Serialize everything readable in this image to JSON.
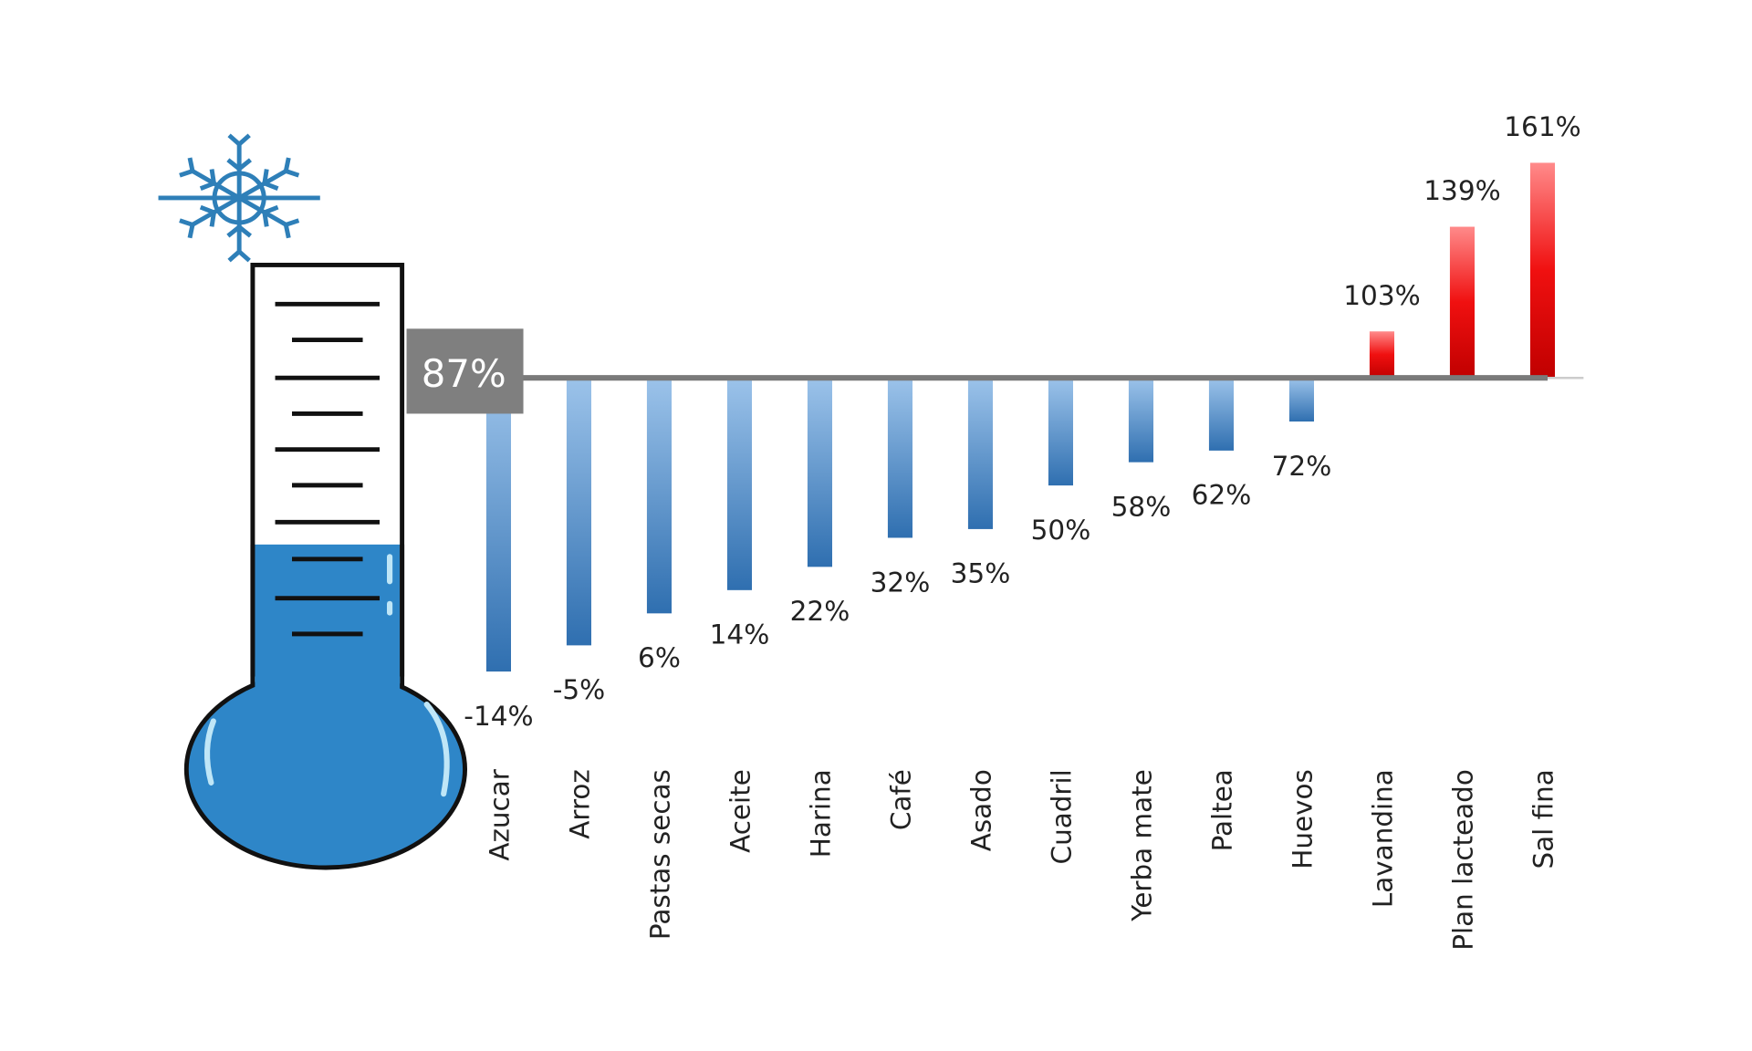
{
  "chart_data": {
    "type": "bar",
    "title": "",
    "reference": {
      "label": "87%",
      "value": 87
    },
    "categories": [
      "Azucar",
      "Arroz",
      "Pastas secas",
      "Aceite",
      "Harina",
      "Café",
      "Asado",
      "Cuadril",
      "Yerba mate",
      "Paltea",
      "Huevos",
      "Lavandina",
      "Plan lacteado",
      "Sal fina"
    ],
    "values": [
      -14,
      -5,
      6,
      14,
      22,
      32,
      35,
      50,
      58,
      62,
      72,
      103,
      139,
      161
    ],
    "labels": [
      "-14%",
      "-5%",
      "6%",
      "14%",
      "22%",
      "32%",
      "35%",
      "50%",
      "58%",
      "62%",
      "72%",
      "103%",
      "139%",
      "161%"
    ],
    "xlabel": "",
    "ylabel": "",
    "colors": {
      "below": "#2f6fb0",
      "below_light": "#9cc3ea",
      "above": "#d40000",
      "above_light": "#ff8a8a",
      "thermometer": "#2e86c8",
      "reference_box": "#7f7f7f"
    }
  }
}
